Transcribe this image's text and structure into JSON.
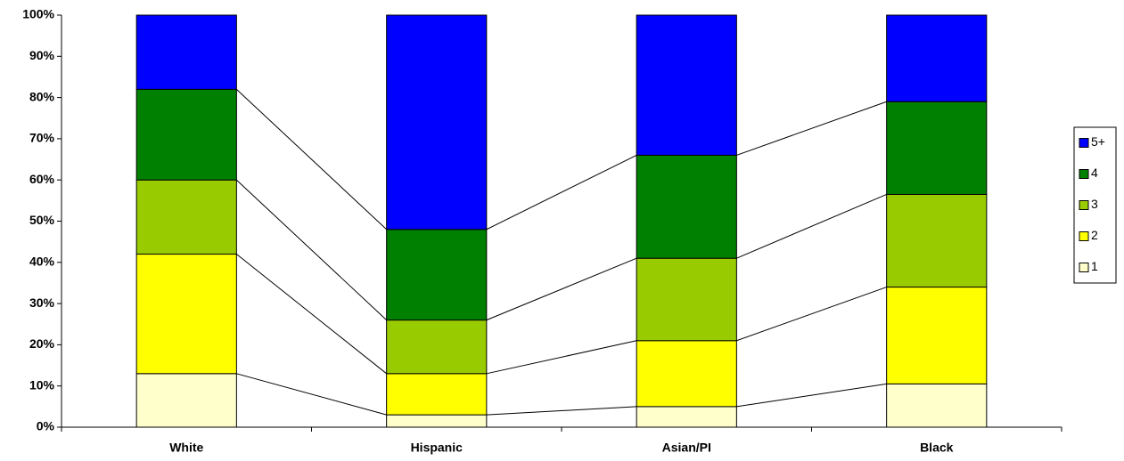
{
  "chart_data": {
    "type": "stacked_bar_100",
    "categories": [
      "White",
      "Hispanic",
      "Asian/PI",
      "Black"
    ],
    "series": [
      {
        "name": "1",
        "color": "#ffffcc",
        "values": [
          13,
          3,
          5,
          10.5
        ]
      },
      {
        "name": "2",
        "color": "#ffff00",
        "values": [
          29,
          10,
          16,
          23.5
        ]
      },
      {
        "name": "3",
        "color": "#99cc00",
        "values": [
          18,
          13,
          20,
          22.5
        ]
      },
      {
        "name": "4",
        "color": "#008000",
        "values": [
          22,
          22,
          25,
          22.5
        ]
      },
      {
        "name": "5+",
        "color": "#0000ff",
        "values": [
          18,
          52,
          34,
          21
        ]
      }
    ],
    "ylim": [
      0,
      100
    ],
    "yticks": [
      {
        "value": 0,
        "label": "0%"
      },
      {
        "value": 10,
        "label": "10%"
      },
      {
        "value": 20,
        "label": "20%"
      },
      {
        "value": 30,
        "label": "30%"
      },
      {
        "value": 40,
        "label": "40%"
      },
      {
        "value": 50,
        "label": "50%"
      },
      {
        "value": 60,
        "label": "60%"
      },
      {
        "value": 70,
        "label": "70%"
      },
      {
        "value": 80,
        "label": "80%"
      },
      {
        "value": 90,
        "label": "90%"
      },
      {
        "value": 100,
        "label": "100%"
      }
    ],
    "series_lines": true,
    "legend": "right"
  }
}
